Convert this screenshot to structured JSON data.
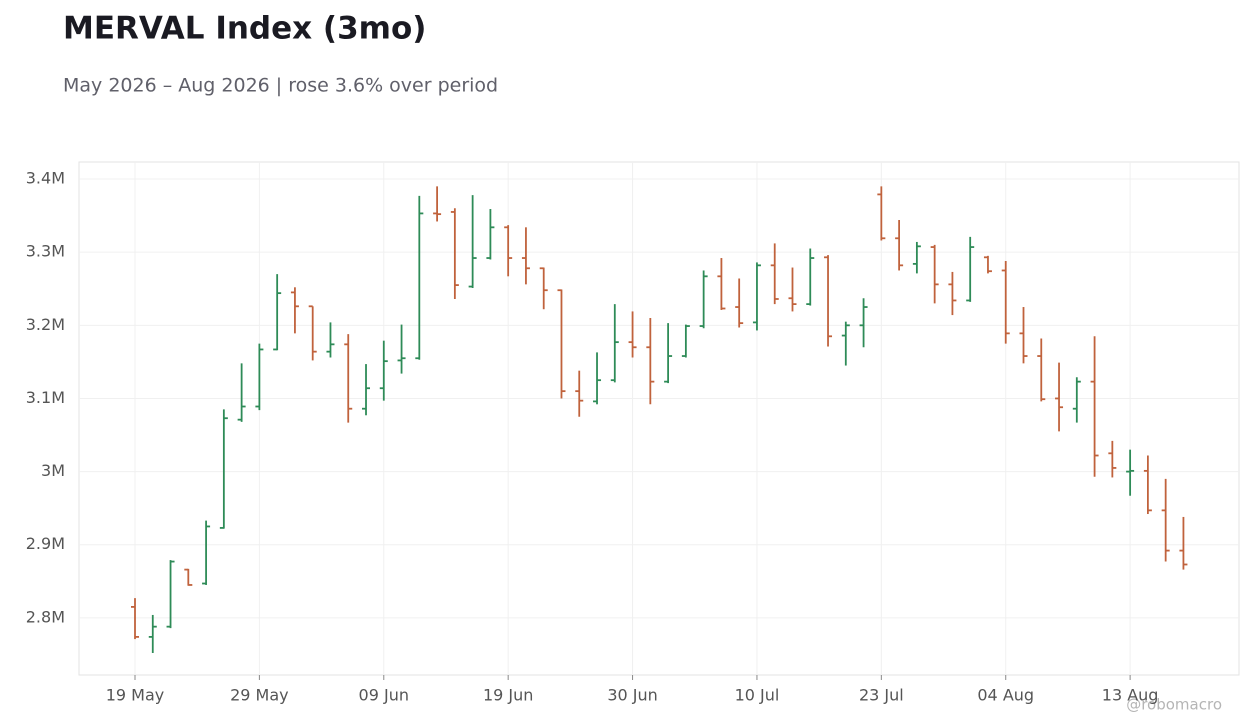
{
  "chart_data": {
    "type": "ohlc",
    "title": "MERVAL Index (3mo)",
    "subtitle": "May 2026 – Aug 2026 | rose 3.6% over period",
    "watermark": "@robomacro",
    "categories": [
      "19 May",
      null,
      null,
      null,
      null,
      null,
      null,
      "29 May",
      null,
      null,
      null,
      null,
      null,
      null,
      "09 Jun",
      null,
      null,
      null,
      null,
      null,
      null,
      "19 Jun",
      null,
      null,
      null,
      null,
      null,
      null,
      "30 Jun",
      null,
      null,
      null,
      null,
      null,
      null,
      "10 Jul",
      null,
      null,
      null,
      null,
      null,
      null,
      "23 Jul",
      null,
      null,
      null,
      null,
      null,
      null,
      "04 Aug",
      null,
      null,
      null,
      null,
      null,
      null,
      "13 Aug",
      null,
      null,
      null
    ],
    "open": [
      2815000,
      2774000,
      2788000,
      2866000,
      2847000,
      2923000,
      3071000,
      3089000,
      3167000,
      3245000,
      3226000,
      3164000,
      3174000,
      3086000,
      3114000,
      3152000,
      3155000,
      3353000,
      3355000,
      3253000,
      3292000,
      3334000,
      3292000,
      3278000,
      3248000,
      3110000,
      3096000,
      3125000,
      3177000,
      3170000,
      3123000,
      3158000,
      3199000,
      3267000,
      3225000,
      3204000,
      3282000,
      3237000,
      3229000,
      3293000,
      3186000,
      3200000,
      3379000,
      3319000,
      3284000,
      3307000,
      3256000,
      3234000,
      3293000,
      3275000,
      3189000,
      3158000,
      3100000,
      3086000,
      3123000,
      3025000,
      3000000,
      3001000,
      2947000,
      2892000
    ],
    "high": [
      2827000,
      2804000,
      2879000,
      2867000,
      2933000,
      3085000,
      3148000,
      3175000,
      3270000,
      3252000,
      3226000,
      3204000,
      3188000,
      3147000,
      3179000,
      3201000,
      3377000,
      3390000,
      3360000,
      3378000,
      3359000,
      3337000,
      3334000,
      3279000,
      3249000,
      3138000,
      3163000,
      3229000,
      3219000,
      3210000,
      3203000,
      3201000,
      3275000,
      3292000,
      3264000,
      3286000,
      3312000,
      3279000,
      3305000,
      3296000,
      3205000,
      3237000,
      3390000,
      3344000,
      3314000,
      3310000,
      3273000,
      3321000,
      3295000,
      3288000,
      3225000,
      3182000,
      3149000,
      3129000,
      3185000,
      3042000,
      3030000,
      3022000,
      2990000,
      2938000
    ],
    "low": [
      2771000,
      2752000,
      2786000,
      2844000,
      2845000,
      2922000,
      3068000,
      3084000,
      3166000,
      3189000,
      3152000,
      3156000,
      3067000,
      3077000,
      3097000,
      3134000,
      3153000,
      3342000,
      3236000,
      3251000,
      3290000,
      3267000,
      3256000,
      3222000,
      3100000,
      3075000,
      3092000,
      3122000,
      3156000,
      3092000,
      3121000,
      3156000,
      3196000,
      3221000,
      3197000,
      3193000,
      3229000,
      3219000,
      3227000,
      3171000,
      3145000,
      3170000,
      3316000,
      3275000,
      3271000,
      3230000,
      3214000,
      3232000,
      3271000,
      3175000,
      3148000,
      3096000,
      3055000,
      3067000,
      2993000,
      2992000,
      2967000,
      2942000,
      2877000,
      2866000
    ],
    "close": [
      2774000,
      2788000,
      2877000,
      2845000,
      2925000,
      3073000,
      3089000,
      3167000,
      3244000,
      3226000,
      3164000,
      3174000,
      3086000,
      3114000,
      3151000,
      3155000,
      3353000,
      3352000,
      3255000,
      3292000,
      3334000,
      3292000,
      3278000,
      3248000,
      3110000,
      3097000,
      3125000,
      3177000,
      3170000,
      3123000,
      3158000,
      3199000,
      3267000,
      3223000,
      3203000,
      3282000,
      3236000,
      3229000,
      3292000,
      3185000,
      3200000,
      3225000,
      3319000,
      3282000,
      3308000,
      3256000,
      3234000,
      3307000,
      3274000,
      3189000,
      3158000,
      3099000,
      3088000,
      3123000,
      3022000,
      3005000,
      3001000,
      2947000,
      2892000,
      2873000
    ],
    "up_color": "#2e8b57",
    "down_color": "#c0623c",
    "ylim": [
      2721900,
      3423300
    ],
    "yticks": [
      {
        "value": 2800000,
        "label": "2.8M"
      },
      {
        "value": 2900000,
        "label": "2.9M"
      },
      {
        "value": 3000000,
        "label": "3M"
      },
      {
        "value": 3100000,
        "label": "3.1M"
      },
      {
        "value": 3200000,
        "label": "3.2M"
      },
      {
        "value": 3300000,
        "label": "3.3M"
      },
      {
        "value": 3400000,
        "label": "3.4M"
      }
    ],
    "grid": true
  }
}
